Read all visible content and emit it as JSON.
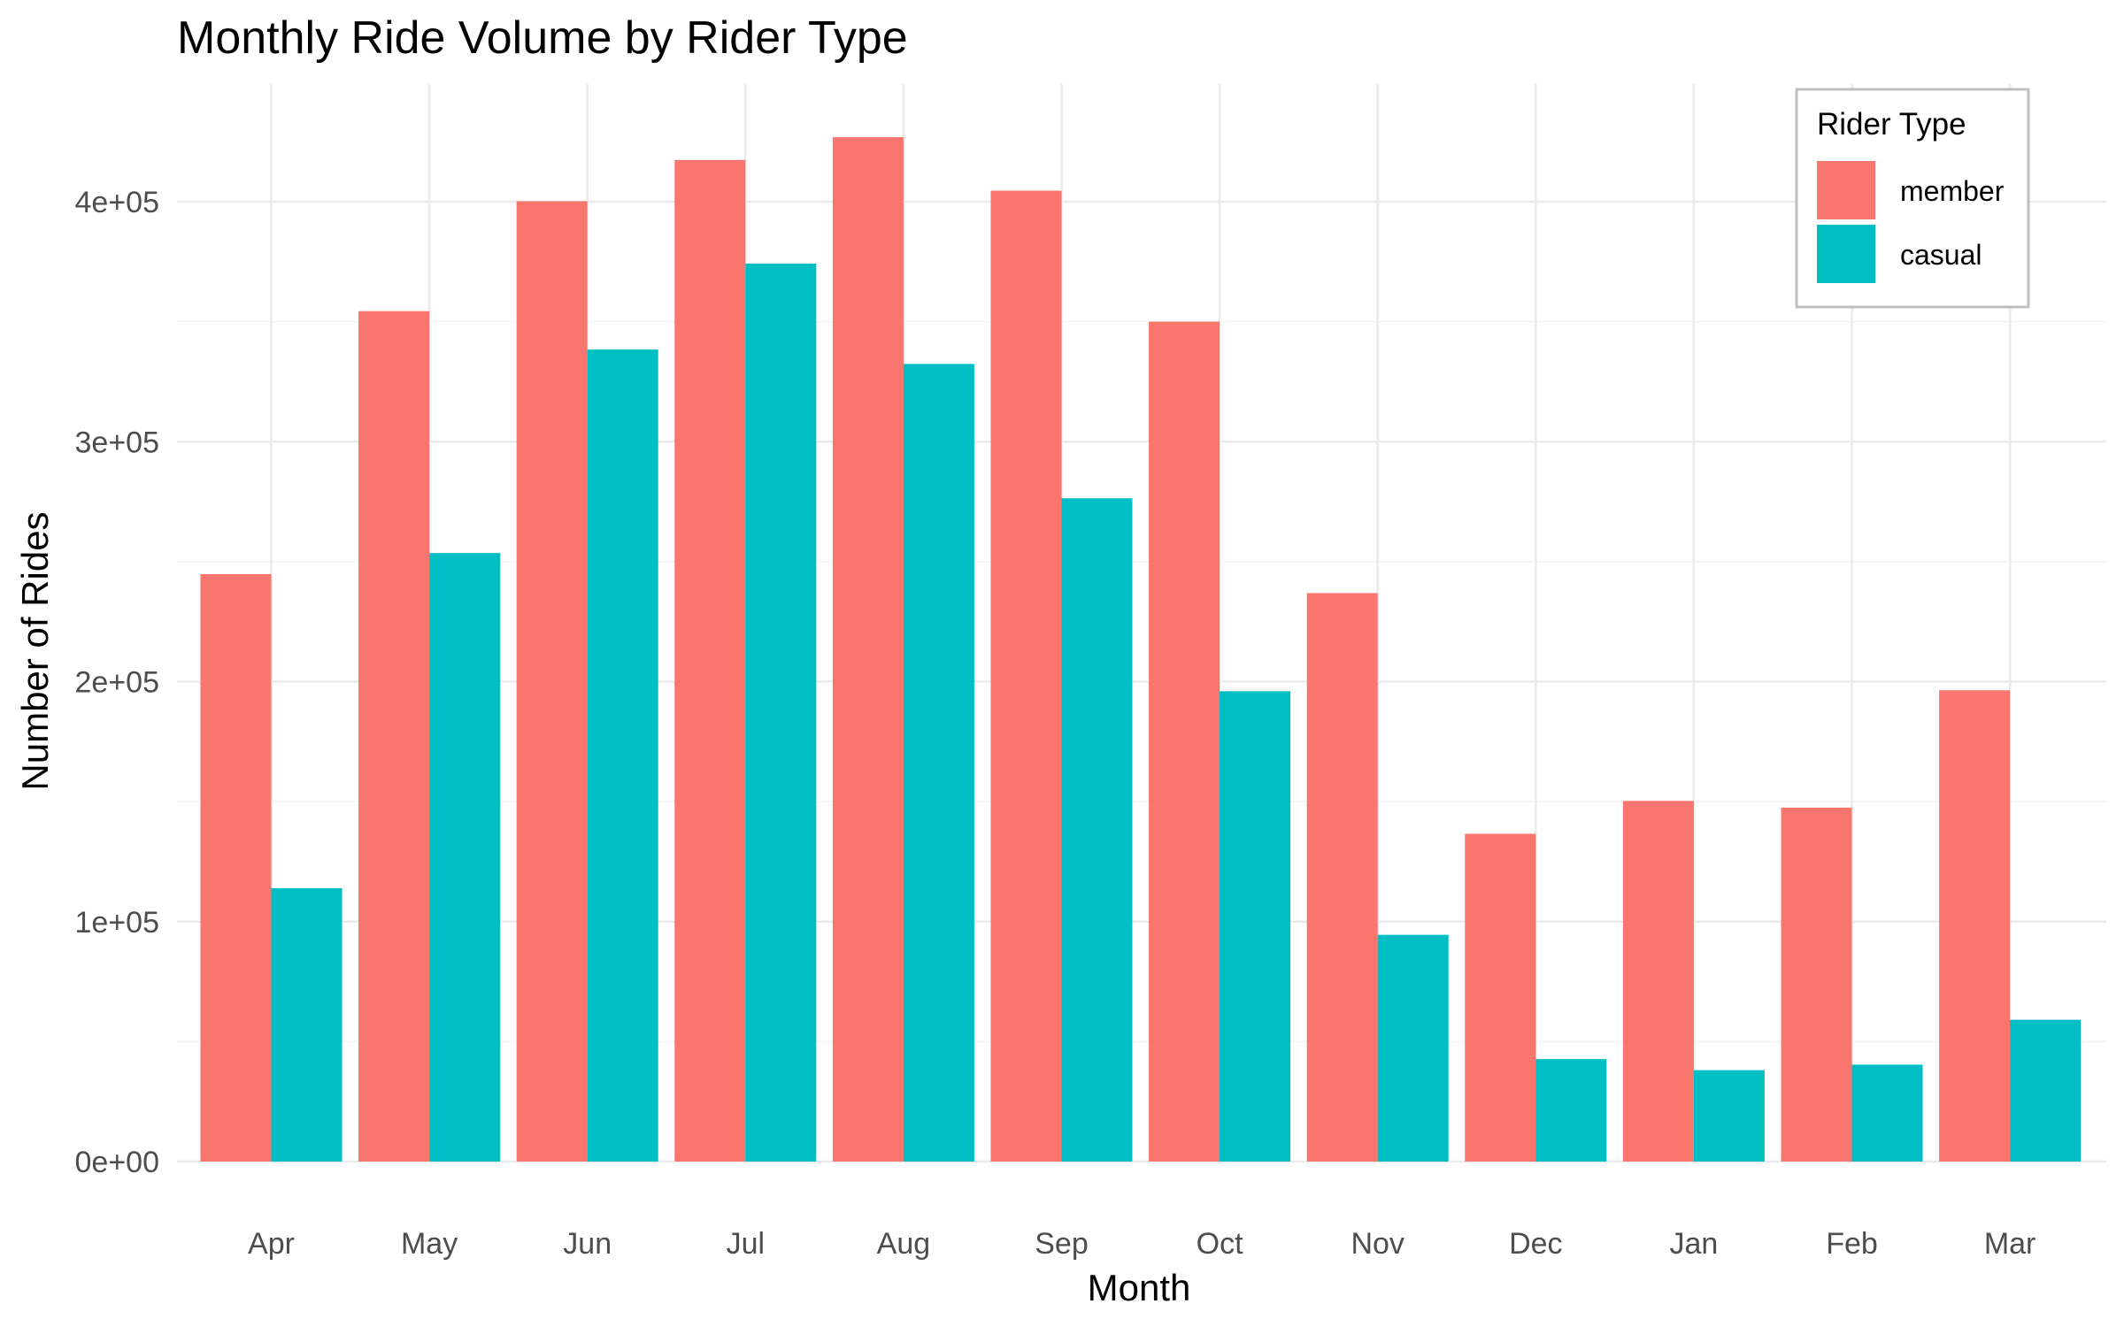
{
  "chart_data": {
    "type": "bar",
    "title": "Monthly Ride Volume by Rider Type",
    "xlabel": "Month",
    "ylabel": "Number of Rides",
    "categories": [
      "Apr",
      "May",
      "Jun",
      "Jul",
      "Aug",
      "Sep",
      "Oct",
      "Nov",
      "Dec",
      "Jan",
      "Feb",
      "Mar"
    ],
    "series": [
      {
        "name": "member",
        "color": "#F8766D",
        "values": [
          244800,
          354400,
          400200,
          417400,
          426900,
          404600,
          350000,
          236900,
          136600,
          150300,
          147500,
          196400
        ]
      },
      {
        "name": "casual",
        "color": "#00BFC4",
        "values": [
          113900,
          253600,
          338400,
          374200,
          332400,
          276400,
          196000,
          94500,
          42700,
          38100,
          40400,
          59100
        ]
      }
    ],
    "ylim": [
      0,
      400000
    ],
    "yticks": [
      {
        "value": 0,
        "label": "0e+00"
      },
      {
        "value": 100000,
        "label": "1e+05"
      },
      {
        "value": 200000,
        "label": "2e+05"
      },
      {
        "value": 300000,
        "label": "3e+05"
      },
      {
        "value": 400000,
        "label": "4e+05"
      }
    ],
    "grid": true,
    "legend": {
      "title": "Rider Type",
      "position": "top-right",
      "entries": [
        "member",
        "casual"
      ]
    }
  }
}
